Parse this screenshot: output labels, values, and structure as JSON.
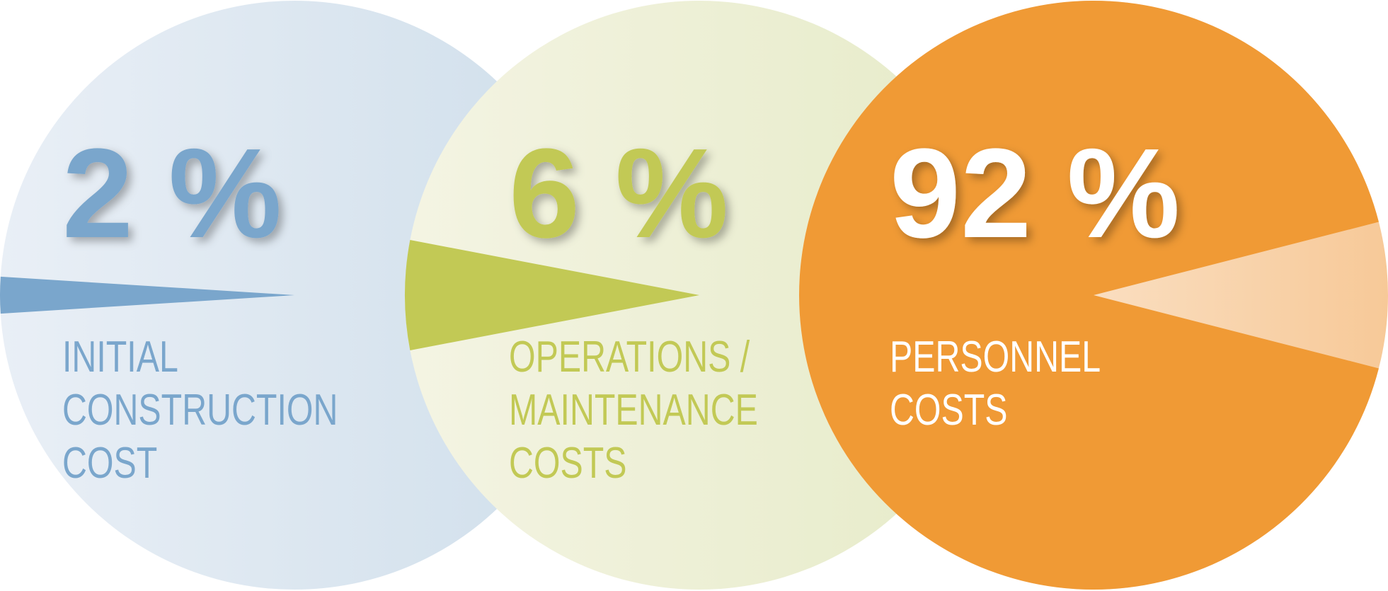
{
  "chart_data": {
    "type": "pie",
    "categories": [
      [
        "INITIAL",
        "CONSTRUCTION",
        "COST"
      ],
      [
        "OPERATIONS /",
        "MAINTENANCE",
        "COSTS"
      ],
      [
        "PERSONNEL",
        "COSTS"
      ]
    ],
    "values": [
      2,
      6,
      92
    ],
    "value_labels": [
      "2 %",
      "6 %",
      "92 %"
    ],
    "colors": [
      "#7aa6cc",
      "#c2c955",
      "#f09a35"
    ],
    "label_colors": [
      "#7aa6cc",
      "#c2c955",
      "#ffffff"
    ],
    "background_colors": [
      [
        "#e9eff6",
        "#d0dfeb"
      ],
      [
        "#f4f4e3",
        "#e6ebc8"
      ],
      [
        "#fdf3e8",
        "#f7c998"
      ]
    ]
  }
}
